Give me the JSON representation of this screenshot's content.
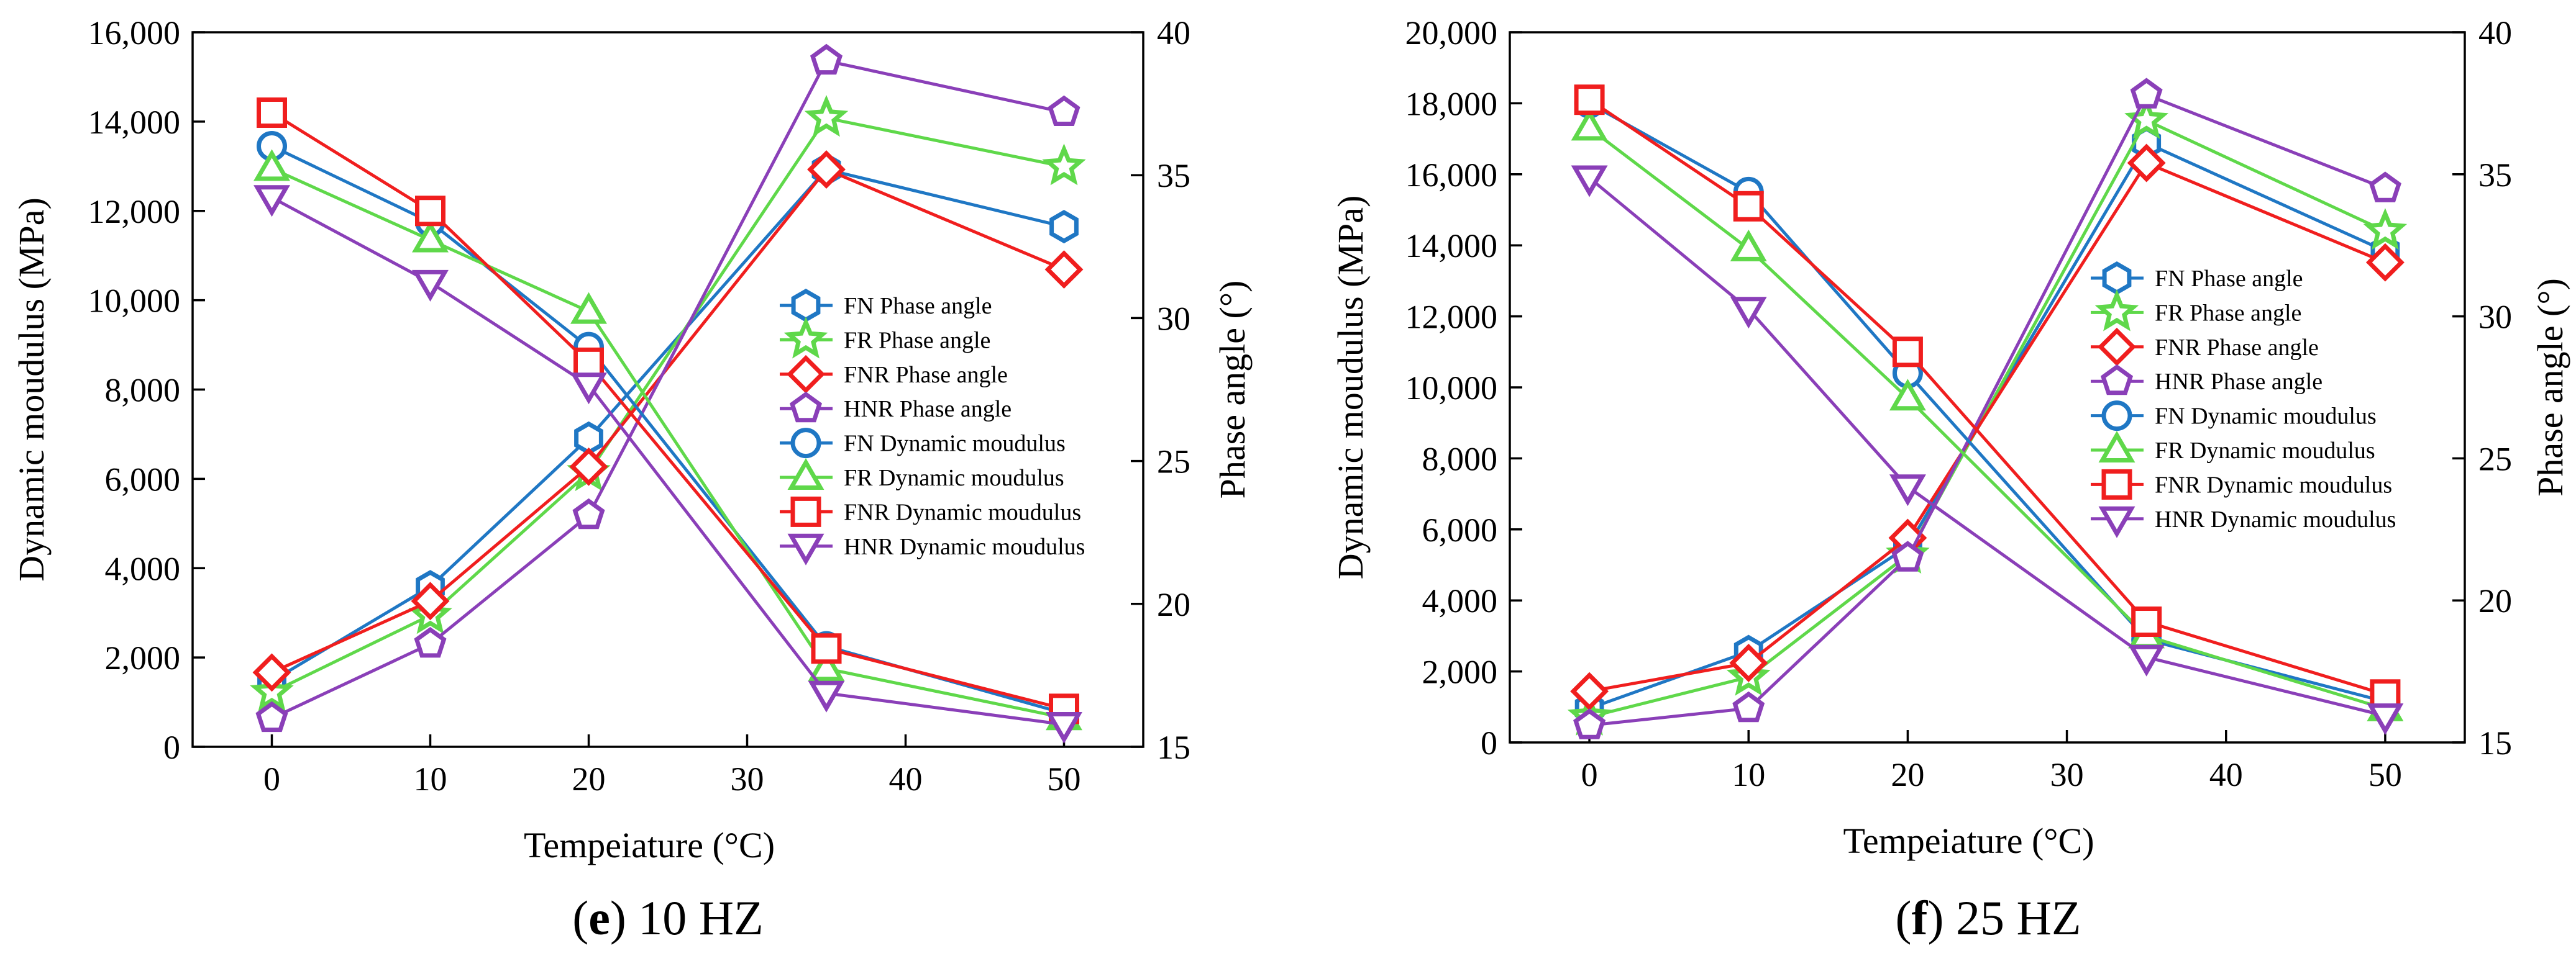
{
  "colors": {
    "FN": "#1f77c4",
    "FR": "#5fd84a",
    "FNR": "#f01e1e",
    "HNR": "#8a3fb8"
  },
  "chart_data": [
    {
      "type": "line",
      "caption": {
        "letter": "e",
        "rest": " 10 HZ"
      },
      "xlabel": "Tempeiature (°C)",
      "ylabel": "Dynamic moudulus (MPa)",
      "y2label": "Phase angle (°)",
      "x": [
        0,
        10,
        20,
        35,
        50
      ],
      "xticks": [
        0,
        10,
        20,
        30,
        40,
        50
      ],
      "xlim": [
        -5,
        55
      ],
      "ylim": [
        0,
        16000
      ],
      "yticks": [
        0,
        2000,
        4000,
        6000,
        8000,
        10000,
        12000,
        14000,
        16000
      ],
      "ytick_labels": [
        "0",
        "2,000",
        "4,000",
        "6,000",
        "8,000",
        "10,000",
        "12,000",
        "14,000",
        "16,000"
      ],
      "y2lim": [
        15,
        40
      ],
      "y2ticks": [
        15,
        20,
        25,
        30,
        35,
        40
      ],
      "legend": [
        "FN Phase angle",
        "FR Phase angle",
        "FNR Phase angle",
        "HNR Phase angle",
        "FN Dynamic moudulus",
        "FR Dynamic moudulus",
        "FNR Dynamic moudulus",
        "HNR Dynamic moudulus"
      ],
      "series": [
        {
          "name": "FN Phase angle",
          "group": "FN",
          "axis": "right",
          "marker": "hexagon",
          "values": [
            17.3,
            20.6,
            25.8,
            35.2,
            33.2
          ]
        },
        {
          "name": "FR Phase angle",
          "group": "FR",
          "axis": "right",
          "marker": "star",
          "values": [
            16.9,
            19.6,
            24.6,
            37.0,
            35.3
          ]
        },
        {
          "name": "FNR Phase angle",
          "group": "FNR",
          "axis": "right",
          "marker": "diamond",
          "values": [
            17.6,
            20.1,
            24.8,
            35.2,
            31.7
          ]
        },
        {
          "name": "HNR Phase angle",
          "group": "HNR",
          "axis": "right",
          "marker": "pentagon",
          "values": [
            16.0,
            18.6,
            23.1,
            39.0,
            37.2
          ]
        },
        {
          "name": "FN Dynamic moudulus",
          "group": "FN",
          "axis": "left",
          "marker": "circle",
          "values": [
            13450,
            11750,
            8950,
            2250,
            750
          ]
        },
        {
          "name": "FR Dynamic moudulus",
          "group": "FR",
          "axis": "left",
          "marker": "triangle-up",
          "values": [
            12950,
            11350,
            9750,
            1750,
            650
          ]
        },
        {
          "name": "FNR Dynamic moudulus",
          "group": "FNR",
          "axis": "left",
          "marker": "square",
          "values": [
            14200,
            12000,
            8600,
            2200,
            850
          ]
        },
        {
          "name": "HNR Dynamic moudulus",
          "group": "HNR",
          "axis": "left",
          "marker": "triangle-down",
          "values": [
            12300,
            10400,
            8100,
            1200,
            500
          ]
        }
      ]
    },
    {
      "type": "line",
      "caption": {
        "letter": "f",
        "rest": " 25 HZ"
      },
      "xlabel": "Tempeiature (°C)",
      "ylabel": "Dynamic moudulus (MPa)",
      "y2label": "Phase angle (°)",
      "x": [
        0,
        10,
        20,
        35,
        50
      ],
      "xticks": [
        0,
        10,
        20,
        30,
        40,
        50
      ],
      "xlim": [
        -5,
        55
      ],
      "ylim": [
        0,
        20000
      ],
      "yticks": [
        0,
        2000,
        4000,
        6000,
        8000,
        10000,
        12000,
        14000,
        16000,
        18000,
        20000
      ],
      "ytick_labels": [
        "0",
        "2,000",
        "4,000",
        "6,000",
        "8,000",
        "10,000",
        "12,000",
        "14,000",
        "16,000",
        "18,000",
        "20,000"
      ],
      "y2lim": [
        15,
        40
      ],
      "y2ticks": [
        15,
        20,
        25,
        30,
        35,
        40
      ],
      "legend": [
        "FN Phase angle",
        "FR Phase angle",
        "FNR Phase angle",
        "HNR Phase angle",
        "FN Dynamic moudulus",
        "FR Dynamic moudulus",
        "FNR Dynamic moudulus",
        "HNR Dynamic moudulus"
      ],
      "series": [
        {
          "name": "FN Phase angle",
          "group": "FN",
          "axis": "right",
          "marker": "hexagon",
          "values": [
            16.2,
            18.2,
            21.9,
            36.1,
            32.3
          ]
        },
        {
          "name": "FR Phase angle",
          "group": "FR",
          "axis": "right",
          "marker": "star",
          "values": [
            15.9,
            17.3,
            21.6,
            36.9,
            33.0
          ]
        },
        {
          "name": "FNR Phase angle",
          "group": "FNR",
          "axis": "right",
          "marker": "diamond",
          "values": [
            16.8,
            17.8,
            22.2,
            35.4,
            31.9
          ]
        },
        {
          "name": "HNR Phase angle",
          "group": "HNR",
          "axis": "right",
          "marker": "pentagon",
          "values": [
            15.6,
            16.2,
            21.5,
            37.8,
            34.5
          ]
        },
        {
          "name": "FN Dynamic moudulus",
          "group": "FN",
          "axis": "left",
          "marker": "circle",
          "values": [
            18000,
            15500,
            10400,
            2900,
            1150
          ]
        },
        {
          "name": "FR Dynamic moudulus",
          "group": "FR",
          "axis": "left",
          "marker": "triangle-up",
          "values": [
            17300,
            13900,
            9700,
            3000,
            950
          ]
        },
        {
          "name": "FNR Dynamic moudulus",
          "group": "FNR",
          "axis": "left",
          "marker": "square",
          "values": [
            18100,
            15100,
            11000,
            3400,
            1350
          ]
        },
        {
          "name": "HNR Dynamic moudulus",
          "group": "HNR",
          "axis": "left",
          "marker": "triangle-down",
          "values": [
            15900,
            12200,
            7200,
            2400,
            750
          ]
        }
      ]
    }
  ]
}
